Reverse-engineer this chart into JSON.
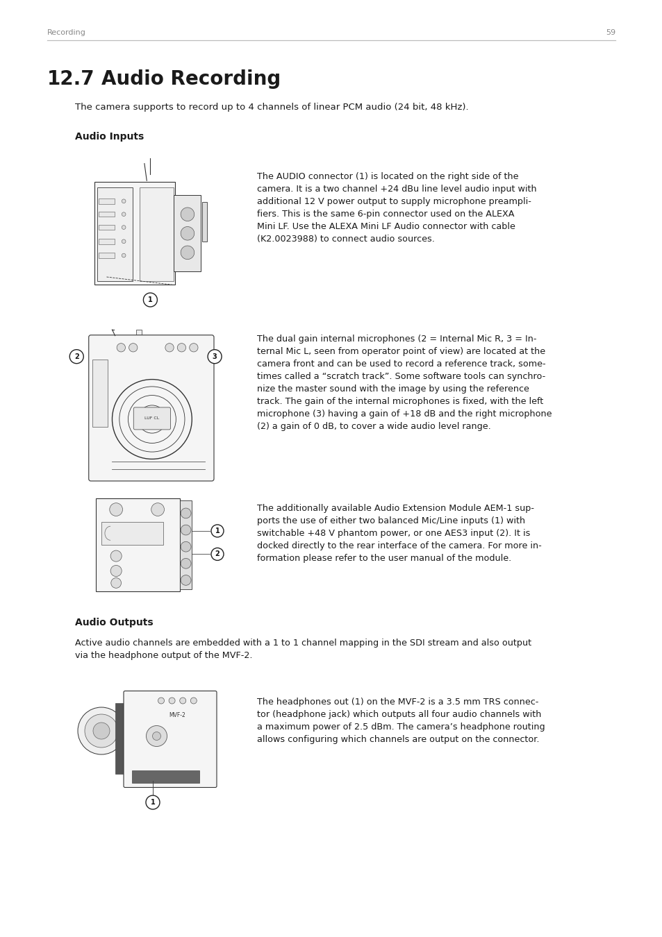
{
  "bg_color": "#ffffff",
  "page_number": "59",
  "header_left": "Recording",
  "chapter_number": "12.7",
  "chapter_title": "Audio Recording",
  "intro_text": "The camera supports to record up to 4 channels of linear PCM audio (24 bit, 48 kHz).",
  "section1_title": "Audio Inputs",
  "section2_title": "Audio Outputs",
  "section2_body": "Active audio channels are embedded with a 1 to 1 channel mapping in the SDI stream and also output\nvia the headphone output of the MVF-2.",
  "block1_text": "The AUDIO connector (1) is located on the right side of the\ncamera. It is a two channel +24 dBu line level audio input with\nadditional 12 V power output to supply microphone preampli-\nfiers. This is the same 6-pin connector used on the ALEXA\nMini LF. Use the ALEXA Mini LF Audio connector with cable\n(K2.0023988) to connect audio sources.",
  "block2_text": "The dual gain internal microphones (2 = Internal Mic R, 3 = In-\nternal Mic L, seen from operator point of view) are located at the\ncamera front and can be used to record a reference track, some-\ntimes called a “scratch track”. Some software tools can synchro-\nnize the master sound with the image by using the reference\ntrack. The gain of the internal microphones is fixed, with the left\nmicrophone (3) having a gain of +18 dB and the right microphone\n(2) a gain of 0 dB, to cover a wide audio level range.",
  "block3_text": "The additionally available Audio Extension Module AEM-1 sup-\nports the use of either two balanced Mic/Line inputs (1) with\nswitchable +48 V phantom power, or one AES3 input (2). It is\ndocked directly to the rear interface of the camera. For more in-\nformation please refer to the user manual of the module.",
  "block4_text": "The headphones out (1) on the MVF-2 is a 3.5 mm TRS connec-\ntor (headphone jack) which outputs all four audio channels with\na maximum power of 2.5 dBm. The camera’s headphone routing\nallows configuring which channels are output on the connector.",
  "text_color": "#1a1a1a",
  "gray_color": "#888888",
  "line_color": "#999999"
}
